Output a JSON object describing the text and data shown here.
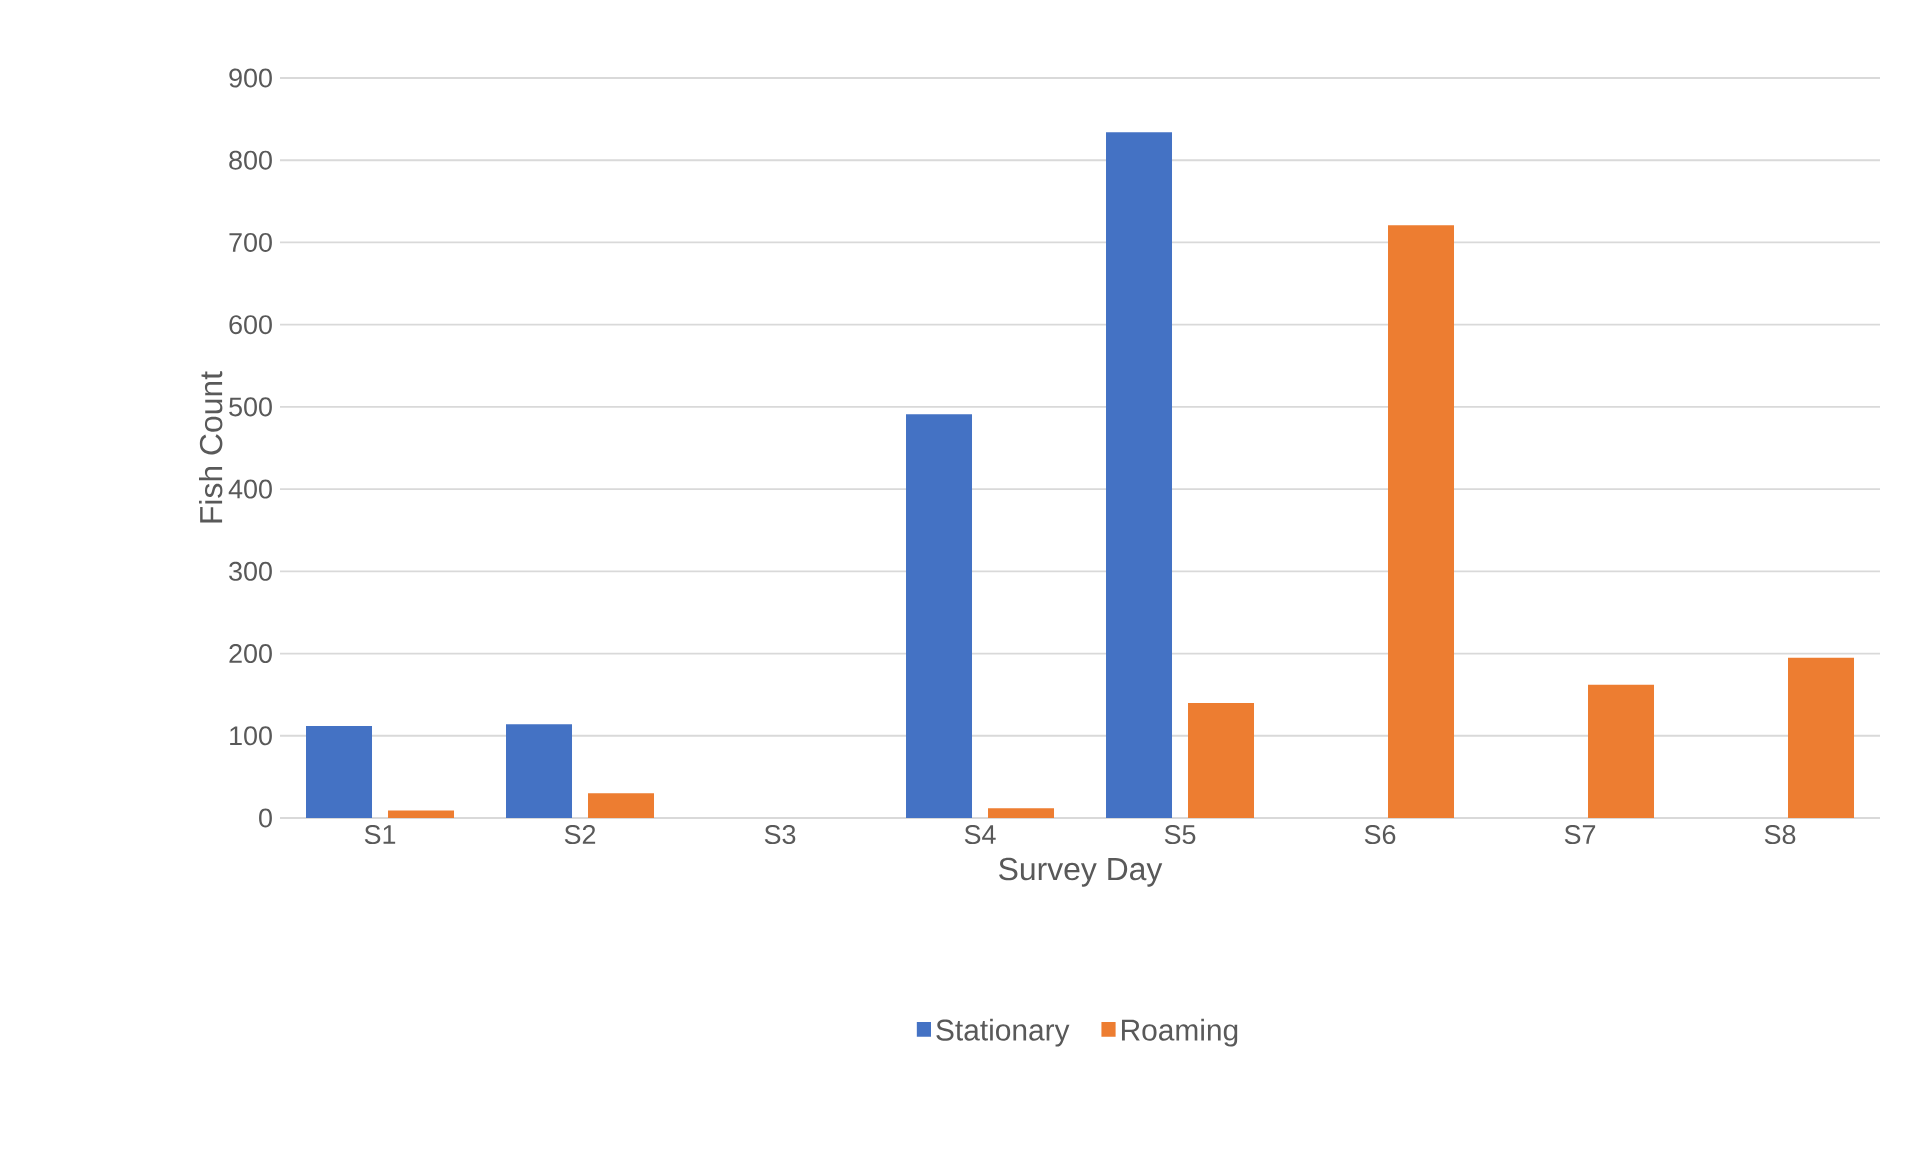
{
  "chart_data": {
    "type": "bar",
    "xlabel": "Survey Day",
    "ylabel": "Fish Count",
    "categories": [
      "S1",
      "S2",
      "S3",
      "S4",
      "S5",
      "S6",
      "S7",
      "S8"
    ],
    "series": [
      {
        "name": "Stationary",
        "color": "#4472c4",
        "values": [
          112,
          114,
          0,
          491,
          834,
          0,
          0,
          0
        ]
      },
      {
        "name": "Roaming",
        "color": "#ed7d31",
        "values": [
          9,
          30,
          0,
          12,
          140,
          721,
          162,
          195
        ]
      }
    ],
    "ylim": [
      0,
      900
    ],
    "yticks": [
      0,
      100,
      200,
      300,
      400,
      500,
      600,
      700,
      800,
      900
    ],
    "grid": "y",
    "legend": "bottom"
  }
}
